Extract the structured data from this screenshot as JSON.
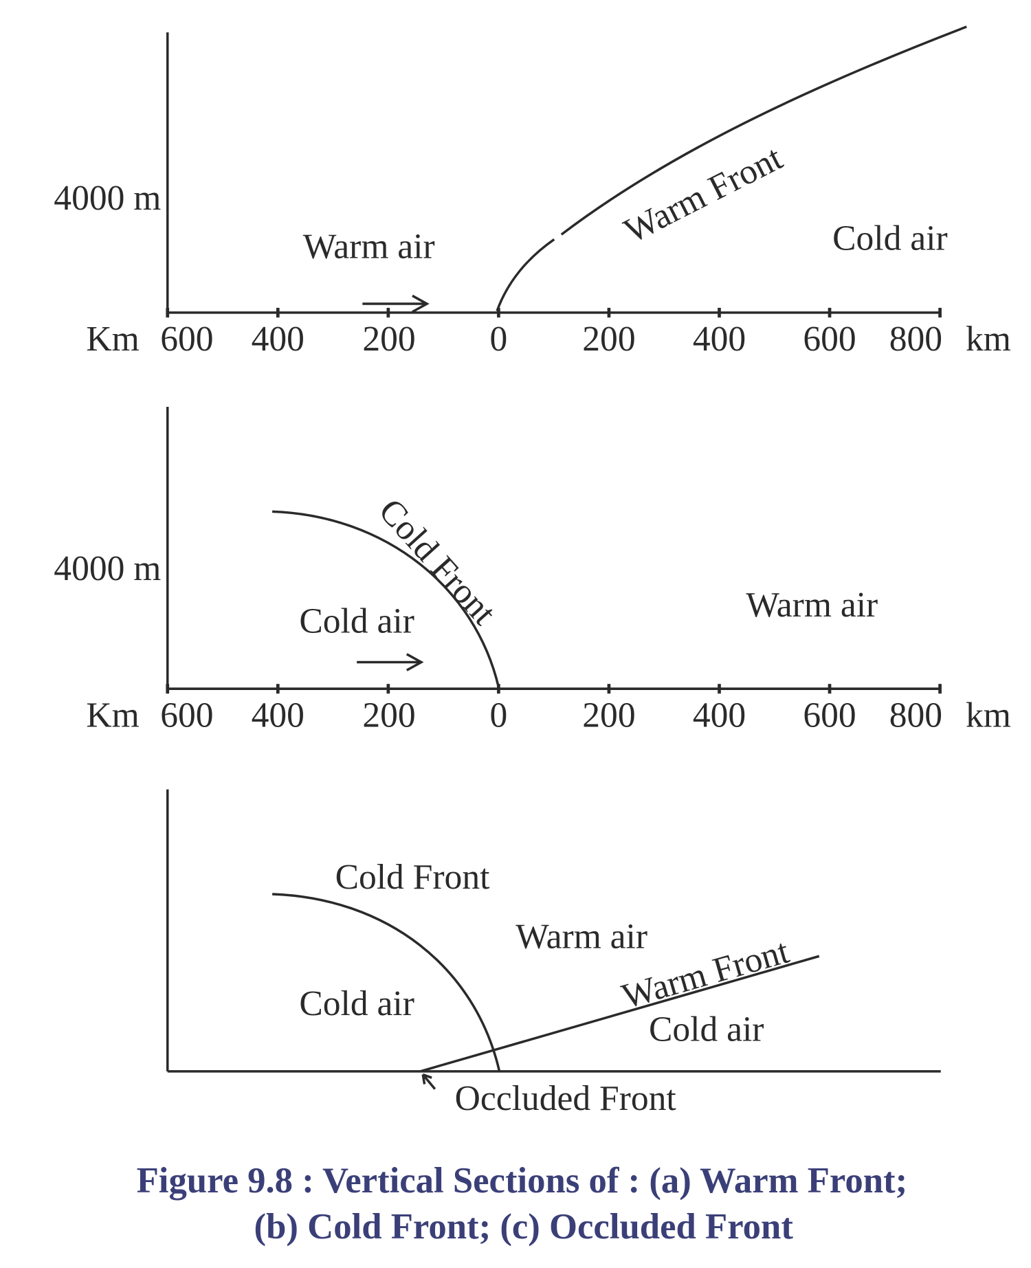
{
  "panels": [
    {
      "height_label": "4000 m",
      "labels": [
        "Warm air",
        "Warm Front",
        "Cold air"
      ],
      "axis": {
        "left_unit": "Km",
        "ticks": [
          "600",
          "400",
          "200",
          "0",
          "200",
          "400",
          "600",
          "800"
        ],
        "right_unit": "km"
      }
    },
    {
      "height_label": "4000 m",
      "labels": [
        "Cold Front",
        "Cold air",
        "Warm air"
      ],
      "axis": {
        "left_unit": "Km",
        "ticks": [
          "600",
          "400",
          "200",
          "0",
          "200",
          "400",
          "600",
          "800"
        ],
        "right_unit": "km"
      }
    },
    {
      "labels": [
        "Cold Front",
        "Warm air",
        "Warm Front",
        "Cold air",
        "Cold air",
        "Occluded Front"
      ]
    }
  ],
  "caption": {
    "line1": "Figure 9.8 : Vertical Sections of : (a) Warm Front;",
    "line2": "(b) Cold Front; (c) Occluded Front"
  }
}
